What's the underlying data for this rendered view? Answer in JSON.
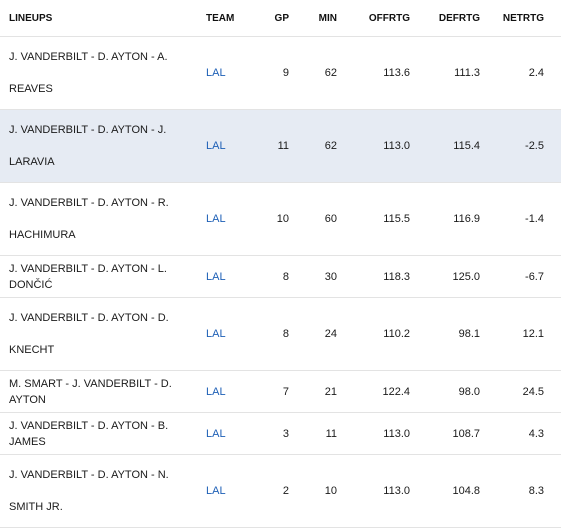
{
  "columns": {
    "lineups": "LINEUPS",
    "team": "TEAM",
    "gp": "GP",
    "min": "MIN",
    "offrtg": "OFFRTG",
    "defrtg": "DEFRTG",
    "netrtg": "NETRTG"
  },
  "rows": [
    {
      "lineup": "J. VANDERBILT - D. AYTON - A. REAVES",
      "team": "LAL",
      "gp": "9",
      "min": "62",
      "offrtg": "113.6",
      "defrtg": "111.3",
      "netrtg": "2.4"
    },
    {
      "lineup": "J. VANDERBILT - D. AYTON - J. LARAVIA",
      "team": "LAL",
      "gp": "11",
      "min": "62",
      "offrtg": "113.0",
      "defrtg": "115.4",
      "netrtg": "-2.5"
    },
    {
      "lineup": "J. VANDERBILT - D. AYTON - R. HACHIMURA",
      "team": "LAL",
      "gp": "10",
      "min": "60",
      "offrtg": "115.5",
      "defrtg": "116.9",
      "netrtg": "-1.4"
    },
    {
      "lineup": "J. VANDERBILT - D. AYTON - L. DONČIĆ",
      "team": "LAL",
      "gp": "8",
      "min": "30",
      "offrtg": "118.3",
      "defrtg": "125.0",
      "netrtg": "-6.7"
    },
    {
      "lineup": "J. VANDERBILT - D. AYTON - D. KNECHT",
      "team": "LAL",
      "gp": "8",
      "min": "24",
      "offrtg": "110.2",
      "defrtg": "98.1",
      "netrtg": "12.1"
    },
    {
      "lineup": "M. SMART - J. VANDERBILT - D. AYTON",
      "team": "LAL",
      "gp": "7",
      "min": "21",
      "offrtg": "122.4",
      "defrtg": "98.0",
      "netrtg": "24.5"
    },
    {
      "lineup": "J. VANDERBILT - D. AYTON - B. JAMES",
      "team": "LAL",
      "gp": "3",
      "min": "11",
      "offrtg": "113.0",
      "defrtg": "108.7",
      "netrtg": "4.3"
    },
    {
      "lineup": "J. VANDERBILT - D. AYTON - N. SMITH JR.",
      "team": "LAL",
      "gp": "2",
      "min": "10",
      "offrtg": "113.0",
      "defrtg": "104.8",
      "netrtg": "8.3"
    }
  ],
  "colors": {
    "link": "#1d5fb6",
    "highlight_row": "#e6ebf3",
    "divider": "#e3e3e3"
  }
}
